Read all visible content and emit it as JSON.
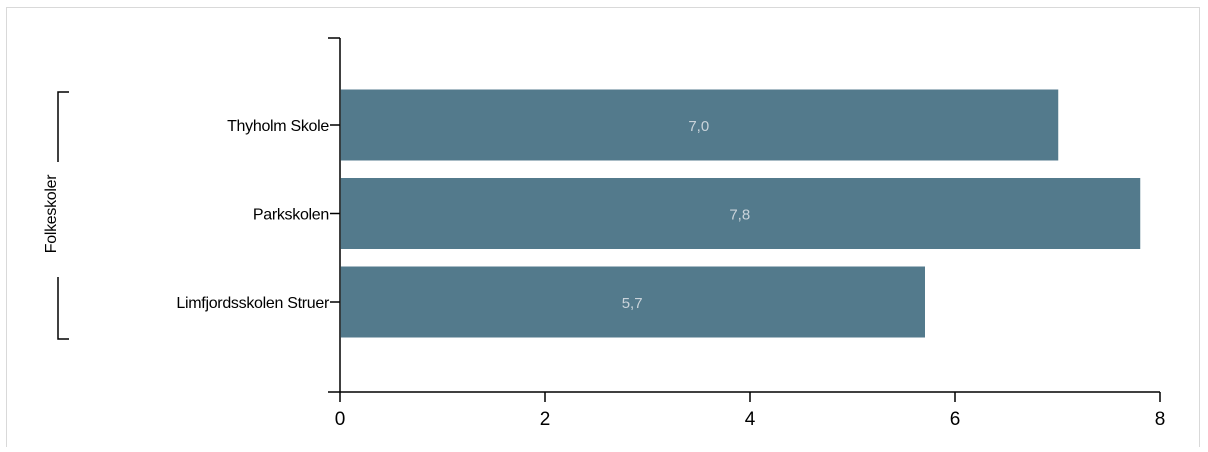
{
  "chart_data": {
    "type": "bar",
    "orientation": "horizontal",
    "group_label": "Folkeskoler",
    "categories": [
      "Thyholm Skole",
      "Parkskolen",
      "Limfjordsskolen Struer"
    ],
    "values": [
      7.0,
      7.8,
      5.7
    ],
    "value_labels": [
      "7,0",
      "7,8",
      "5,7"
    ],
    "xlim": [
      0,
      8
    ],
    "x_ticks": [
      0,
      2,
      4,
      6,
      8
    ],
    "x_tick_labels": [
      "0",
      "2",
      "4",
      "6",
      "8"
    ],
    "bar_color": "#537a8c",
    "grid": false,
    "legend": "none"
  }
}
